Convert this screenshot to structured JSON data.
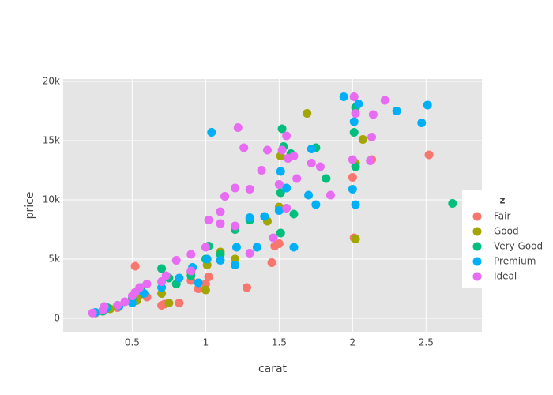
{
  "chart_data": {
    "type": "scatter",
    "x_label": "carat",
    "y_label": "price",
    "legend_title": "z",
    "xlim": [
      0.03,
      2.88
    ],
    "ylim": [
      -1130,
      20200
    ],
    "xticks": [
      0.5,
      1,
      1.5,
      2,
      2.5
    ],
    "yticks": [
      0,
      {
        "value": 5000,
        "label": "5k"
      },
      {
        "value": 10000,
        "label": "10k"
      },
      {
        "value": 15000,
        "label": "15k"
      },
      {
        "value": 20000,
        "label": "20k"
      }
    ],
    "grid": true,
    "legend": "right",
    "series": [
      {
        "name": "Fair",
        "color": "#F8766D",
        "x": [
          0.25,
          0.3,
          0.52,
          0.7,
          0.72,
          0.82,
          0.95,
          1.0,
          1.28,
          1.45,
          1.47,
          1.5,
          2.0,
          2.01,
          2.13,
          2.52,
          1.02,
          0.9,
          0.6,
          0.4
        ],
        "values": [
          450,
          600,
          4400,
          1100,
          1200,
          1300,
          2500,
          2900,
          2600,
          4700,
          6100,
          6300,
          11900,
          6800,
          13400,
          13800,
          3500,
          3200,
          1800,
          900
        ]
      },
      {
        "name": "Good",
        "color": "#A3A500",
        "x": [
          0.3,
          0.35,
          0.53,
          0.7,
          0.75,
          1.0,
          1.01,
          1.2,
          1.42,
          1.5,
          1.51,
          1.69,
          2.02,
          2.02,
          2.07,
          0.9,
          1.1,
          0.55
        ],
        "values": [
          700,
          800,
          1500,
          2100,
          1300,
          2400,
          4500,
          5000,
          8200,
          9400,
          13700,
          17300,
          6700,
          13100,
          15100,
          3900,
          5600,
          2000
        ]
      },
      {
        "name": "Very Good",
        "color": "#00BF7D",
        "x": [
          0.3,
          0.33,
          0.5,
          0.56,
          0.7,
          0.75,
          0.9,
          1.0,
          1.02,
          1.1,
          1.2,
          1.3,
          1.51,
          1.51,
          1.52,
          1.53,
          1.58,
          1.75,
          1.82,
          2.01,
          2.02,
          2.02,
          2.68,
          0.4,
          0.8,
          1.6
        ],
        "values": [
          600,
          900,
          1700,
          2600,
          4200,
          3400,
          3600,
          5000,
          6100,
          5400,
          7500,
          8300,
          7200,
          10600,
          16000,
          14500,
          13900,
          14400,
          11800,
          15700,
          17800,
          12800,
          9700,
          1100,
          2900,
          8800
        ]
      },
      {
        "name": "Premium",
        "color": "#00B0F6",
        "x": [
          0.25,
          0.32,
          0.41,
          0.5,
          0.58,
          0.7,
          0.82,
          0.91,
          1.01,
          1.04,
          1.1,
          1.21,
          1.3,
          1.35,
          1.4,
          1.5,
          1.51,
          1.6,
          1.7,
          1.72,
          1.75,
          1.94,
          2.0,
          2.02,
          2.04,
          2.3,
          2.47,
          2.51,
          1.2,
          0.95,
          1.55,
          2.01
        ],
        "values": [
          500,
          800,
          1000,
          1300,
          2100,
          2600,
          3400,
          4300,
          5000,
          15700,
          4900,
          6000,
          8500,
          6000,
          8600,
          9100,
          12400,
          6000,
          10400,
          14300,
          9600,
          18700,
          10900,
          9600,
          18100,
          17500,
          16500,
          18000,
          4500,
          3000,
          11000,
          16600
        ]
      },
      {
        "name": "Ideal",
        "color": "#E76BF3",
        "x": [
          0.23,
          0.3,
          0.31,
          0.4,
          0.45,
          0.5,
          0.52,
          0.55,
          0.6,
          0.7,
          0.73,
          0.8,
          0.9,
          1.0,
          1.02,
          1.1,
          1.13,
          1.2,
          1.2,
          1.22,
          1.26,
          1.3,
          1.38,
          1.42,
          1.5,
          1.52,
          1.55,
          1.56,
          1.6,
          1.62,
          1.72,
          1.78,
          1.85,
          2.0,
          2.01,
          2.02,
          2.12,
          2.14,
          2.22,
          2.13,
          1.3,
          1.1,
          0.9,
          1.46,
          1.55
        ],
        "values": [
          450,
          700,
          1000,
          1100,
          1400,
          1900,
          2200,
          2600,
          2900,
          3100,
          3600,
          4900,
          5400,
          6000,
          8300,
          9000,
          10300,
          11000,
          7800,
          16100,
          14400,
          10900,
          12500,
          14200,
          11300,
          14200,
          15400,
          13500,
          13700,
          11800,
          13100,
          12800,
          10400,
          13400,
          18700,
          17300,
          13300,
          17200,
          18400,
          15300,
          5500,
          8000,
          4000,
          6800,
          9300
        ]
      }
    ]
  }
}
